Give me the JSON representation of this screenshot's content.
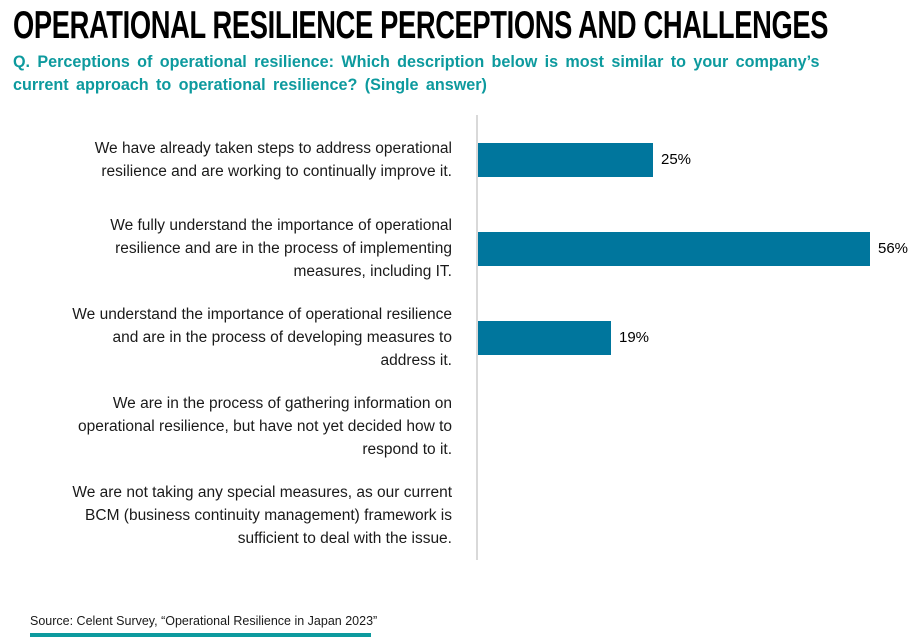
{
  "header": {
    "title": "OPERATIONAL RESILIENCE PERCEPTIONS AND CHALLENGES",
    "question_line1": "Q. Perceptions of operational resilience: Which description below is most similar to your company’s",
    "question_line2": "current approach to operational resilience? (Single answer)"
  },
  "chart_data": {
    "type": "bar",
    "orientation": "horizontal",
    "title": "",
    "xlabel": "",
    "ylabel": "",
    "xlim": [
      0,
      63
    ],
    "grid": false,
    "legend_position": "none",
    "bar_color": "#00769D",
    "axis_line_color": "#D9D9D9",
    "categories": [
      "We have already taken steps to address operational resilience and are working to continually improve it.",
      "We fully understand the importance of operational resilience and are in the process of implementing measures, including IT.",
      "We understand the importance of operational resilience and are in the process of developing measures to address it.",
      "We are in the process of gathering information on operational resilience, but have not yet decided how to respond to it.",
      "We are not taking any special measures, as our current BCM (business continuity management) framework is sufficient to deal with the issue."
    ],
    "category_lines": [
      [
        "We have already taken steps to address operational",
        "resilience and are working to continually improve it."
      ],
      [
        "We fully understand the importance of operational",
        "resilience and are in the process of implementing",
        "measures, including IT."
      ],
      [
        "We understand the importance of operational resilience",
        "and are in the process of developing measures to",
        "address it."
      ],
      [
        "We are in the process of gathering information on",
        "operational resilience, but have not yet decided how to",
        "respond to it."
      ],
      [
        "We are not taking any special measures, as our current",
        "BCM (business continuity management) framework is",
        "sufficient to deal with the issue."
      ]
    ],
    "values": [
      25,
      56,
      19,
      0,
      0
    ],
    "value_labels": [
      "25%",
      "56%",
      "19%",
      "",
      ""
    ]
  },
  "footer": {
    "source": "Source: Celent Survey, “Operational Resilience in Japan 2023”"
  },
  "colors": {
    "bar_blue": "#00769D",
    "accent_teal": "#0D9A9E",
    "axis_gray": "#D9D9D9",
    "title_black": "#000000"
  }
}
